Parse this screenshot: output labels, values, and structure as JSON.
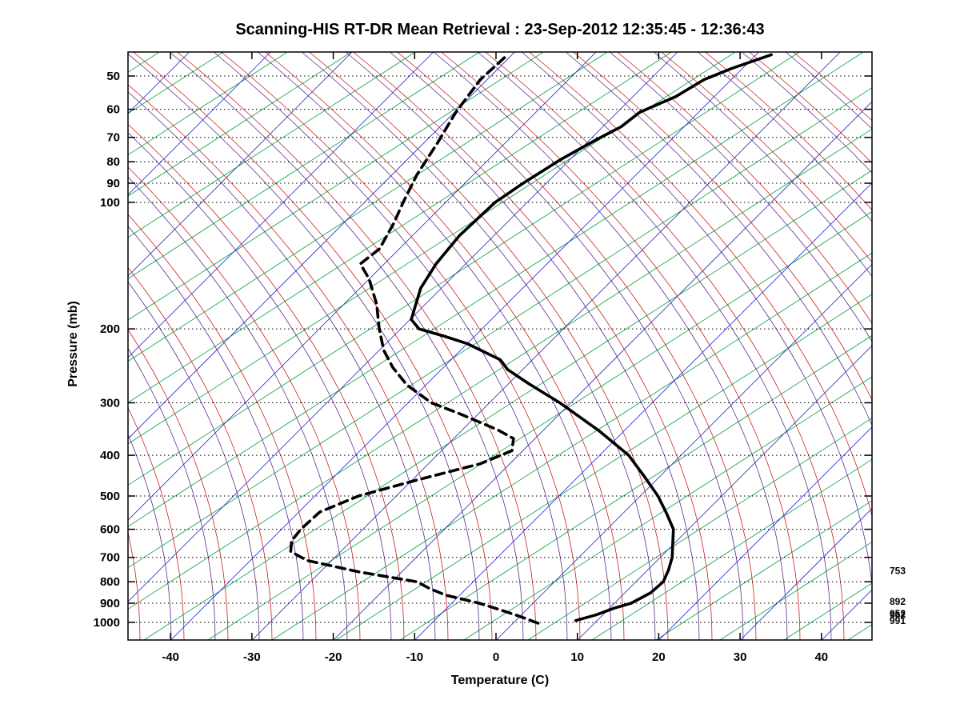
{
  "chart_data": {
    "type": "line",
    "chart_kind": "skew-t-log-p-sounding",
    "title": "Scanning-HIS RT-DR Mean Retrieval : 23-Sep-2012 12:35:45 - 12:36:43",
    "xlabel": "Temperature (C)",
    "ylabel": "Pressure (mb)",
    "x_ticks": [
      -40,
      -30,
      -20,
      -10,
      0,
      10,
      20,
      30,
      40
    ],
    "y_ticks": [
      50,
      60,
      70,
      80,
      90,
      100,
      200,
      300,
      400,
      500,
      600,
      700,
      800,
      900,
      1000
    ],
    "x_axis_range_c": [
      -45,
      46
    ],
    "pressure_range_mb": [
      44,
      1101
    ],
    "y_scale": "log",
    "grid": "dotted-horizontal-pressure-lines",
    "legend_position": "none",
    "series": [
      {
        "name": "temperature",
        "style": "solid",
        "color": "#000000",
        "points_p_t": [
          [
            990,
            7.4
          ],
          [
            960,
            9.2
          ],
          [
            925,
            10.6
          ],
          [
            900,
            12.1
          ],
          [
            850,
            13.2
          ],
          [
            800,
            13.4
          ],
          [
            750,
            12.6
          ],
          [
            700,
            11.5
          ],
          [
            650,
            9.9
          ],
          [
            600,
            8.2
          ],
          [
            550,
            5.4
          ],
          [
            500,
            2.2
          ],
          [
            450,
            -1.8
          ],
          [
            400,
            -6.4
          ],
          [
            350,
            -13.0
          ],
          [
            300,
            -21.3
          ],
          [
            270,
            -27.5
          ],
          [
            250,
            -31.8
          ],
          [
            237,
            -33.9
          ],
          [
            217,
            -39.9
          ],
          [
            208,
            -43.8
          ],
          [
            200,
            -47.7
          ],
          [
            190,
            -49.8
          ],
          [
            175,
            -51.1
          ],
          [
            160,
            -52.5
          ],
          [
            140,
            -53.6
          ],
          [
            120,
            -54.2
          ],
          [
            100,
            -53.9
          ],
          [
            90,
            -52.8
          ],
          [
            79,
            -51.1
          ],
          [
            71,
            -49.2
          ],
          [
            66,
            -47.7
          ],
          [
            61,
            -47.2
          ],
          [
            56,
            -44.7
          ],
          [
            51,
            -43.3
          ],
          [
            48,
            -41.3
          ],
          [
            44.5,
            -38.1
          ]
        ]
      },
      {
        "name": "dewpoint",
        "style": "dashed",
        "color": "#000000",
        "points_p_t": [
          [
            1004,
            3.1
          ],
          [
            967,
            0.0
          ],
          [
            930,
            -3.5
          ],
          [
            900,
            -6.6
          ],
          [
            860,
            -11.8
          ],
          [
            830,
            -14.5
          ],
          [
            800,
            -16.9
          ],
          [
            758,
            -25.2
          ],
          [
            712,
            -33.0
          ],
          [
            678,
            -36.1
          ],
          [
            640,
            -37.3
          ],
          [
            600,
            -37.6
          ],
          [
            546,
            -37.4
          ],
          [
            500,
            -34.6
          ],
          [
            459,
            -29.5
          ],
          [
            419,
            -23.6
          ],
          [
            390,
            -21.3
          ],
          [
            365,
            -22.6
          ],
          [
            348,
            -25.6
          ],
          [
            318,
            -32.4
          ],
          [
            300,
            -37.1
          ],
          [
            272,
            -42.3
          ],
          [
            247,
            -46.2
          ],
          [
            225,
            -49.4
          ],
          [
            200,
            -52.6
          ],
          [
            175,
            -55.9
          ],
          [
            152,
            -60.0
          ],
          [
            140,
            -62.9
          ],
          [
            129,
            -62.4
          ],
          [
            112,
            -63.8
          ],
          [
            100,
            -65.2
          ],
          [
            86,
            -66.9
          ],
          [
            72,
            -68.3
          ],
          [
            61,
            -69.8
          ],
          [
            51,
            -70.8
          ],
          [
            44.5,
            -70.5
          ]
        ]
      }
    ],
    "background": {
      "isotherms": {
        "color": "#2222CC",
        "step_c": 10
      },
      "dry_adiabats": {
        "color": "#CC2020",
        "step_c": 10
      },
      "moist_adiabats": {
        "color": "#00A040",
        "step_c": 5
      },
      "mixing_ratio_lines": {
        "color": "#5B2D8E"
      }
    },
    "annotations": {
      "right_pressure_labels": [
        753,
        892,
        952,
        962,
        991
      ]
    }
  }
}
